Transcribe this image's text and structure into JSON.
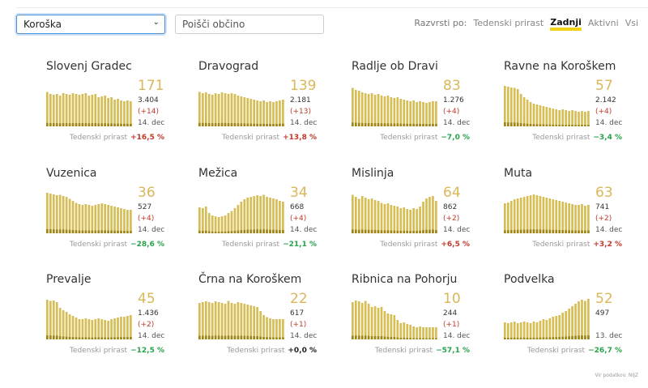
{
  "region_select": {
    "value": "Koroška"
  },
  "search": {
    "placeholder": "Poišči občino"
  },
  "sort": {
    "label": "Razvrsti po:",
    "options": [
      {
        "label": "Tedenski prirast",
        "active": false
      },
      {
        "label": "Zadnji",
        "active": true
      },
      {
        "label": "Aktivni",
        "active": false
      },
      {
        "label": "Vsi",
        "active": false
      }
    ]
  },
  "colors": {
    "bar": "#d6bd55",
    "bar_dark": "#a08616",
    "value": "#d9b75a",
    "positive": "#c0392b",
    "negative": "#27a34a"
  },
  "weekly_label": "Tedenski prirast",
  "source": "Vir podatkov: NIJZ",
  "municipalities": [
    {
      "name": "Slovenj Gradec",
      "active": "171",
      "total": "3.404",
      "delta": "(+14)",
      "date": "14. dec",
      "weekly": "+16,5 %",
      "trend": "pos",
      "series": [
        0.85,
        0.8,
        0.78,
        0.8,
        0.76,
        0.82,
        0.8,
        0.78,
        0.82,
        0.8,
        0.78,
        0.8,
        0.82,
        0.76,
        0.78,
        0.8,
        0.72,
        0.74,
        0.76,
        0.7,
        0.72,
        0.66,
        0.68,
        0.64,
        0.62,
        0.64,
        0.62
      ]
    },
    {
      "name": "Dravograd",
      "active": "139",
      "total": "2.181",
      "delta": "(+13)",
      "date": "14. dec",
      "weekly": "+13,8 %",
      "trend": "pos",
      "series": [
        0.85,
        0.82,
        0.84,
        0.8,
        0.78,
        0.82,
        0.8,
        0.84,
        0.82,
        0.8,
        0.82,
        0.8,
        0.76,
        0.74,
        0.72,
        0.7,
        0.68,
        0.66,
        0.64,
        0.62,
        0.64,
        0.6,
        0.62,
        0.6,
        0.62,
        0.64,
        0.66
      ]
    },
    {
      "name": "Radlje ob Dravi",
      "active": "83",
      "total": "1.276",
      "delta": "(+4)",
      "date": "14. dec",
      "weekly": "−7,0 %",
      "trend": "neg",
      "series": [
        0.95,
        0.9,
        0.88,
        0.84,
        0.82,
        0.8,
        0.82,
        0.78,
        0.8,
        0.76,
        0.74,
        0.76,
        0.72,
        0.7,
        0.72,
        0.68,
        0.66,
        0.64,
        0.62,
        0.64,
        0.6,
        0.62,
        0.6,
        0.58,
        0.6,
        0.62,
        0.62
      ]
    },
    {
      "name": "Ravne na Koroškem",
      "active": "57",
      "total": "2.142",
      "delta": "(+4)",
      "date": "14. dec",
      "weekly": "−3,4 %",
      "trend": "neg",
      "series": [
        1.0,
        0.98,
        0.96,
        0.95,
        0.92,
        0.8,
        0.72,
        0.66,
        0.6,
        0.56,
        0.54,
        0.52,
        0.5,
        0.48,
        0.46,
        0.44,
        0.42,
        0.4,
        0.42,
        0.4,
        0.38,
        0.4,
        0.38,
        0.36,
        0.38,
        0.36,
        0.38
      ]
    },
    {
      "name": "Vuzenica",
      "active": "36",
      "total": "527",
      "delta": "(+4)",
      "date": "14. dec",
      "weekly": "−28,6 %",
      "trend": "neg",
      "series": [
        1.0,
        0.98,
        0.96,
        0.94,
        0.95,
        0.92,
        0.9,
        0.85,
        0.8,
        0.75,
        0.72,
        0.7,
        0.72,
        0.7,
        0.68,
        0.7,
        0.72,
        0.74,
        0.72,
        0.7,
        0.68,
        0.66,
        0.64,
        0.62,
        0.6,
        0.58,
        0.58
      ]
    },
    {
      "name": "Mežica",
      "active": "34",
      "total": "668",
      "delta": "(+4)",
      "date": "14. dec",
      "weekly": "−21,1 %",
      "trend": "neg",
      "series": [
        0.64,
        0.62,
        0.66,
        0.5,
        0.44,
        0.42,
        0.4,
        0.42,
        0.44,
        0.5,
        0.55,
        0.62,
        0.7,
        0.78,
        0.84,
        0.88,
        0.9,
        0.92,
        0.94,
        0.92,
        0.95,
        0.9,
        0.88,
        0.86,
        0.84,
        0.8,
        0.78
      ]
    },
    {
      "name": "Mislinja",
      "active": "64",
      "total": "862",
      "delta": "(+2)",
      "date": "14. dec",
      "weekly": "+6,5 %",
      "trend": "pos",
      "series": [
        0.95,
        0.9,
        0.85,
        0.92,
        0.88,
        0.84,
        0.86,
        0.82,
        0.8,
        0.75,
        0.72,
        0.74,
        0.7,
        0.68,
        0.66,
        0.62,
        0.64,
        0.6,
        0.58,
        0.62,
        0.6,
        0.66,
        0.78,
        0.86,
        0.9,
        0.92,
        0.8
      ]
    },
    {
      "name": "Muta",
      "active": "63",
      "total": "741",
      "delta": "(+2)",
      "date": "14. dec",
      "weekly": "+3,2 %",
      "trend": "pos",
      "series": [
        0.74,
        0.76,
        0.8,
        0.84,
        0.86,
        0.88,
        0.9,
        0.92,
        0.94,
        0.96,
        0.94,
        0.92,
        0.9,
        0.88,
        0.86,
        0.84,
        0.82,
        0.8,
        0.78,
        0.76,
        0.74,
        0.72,
        0.7,
        0.7,
        0.72,
        0.68,
        0.7
      ]
    },
    {
      "name": "Prevalje",
      "active": "45",
      "total": "1.436",
      "delta": "(+2)",
      "date": "14. dec",
      "weekly": "−12,5 %",
      "trend": "neg",
      "series": [
        0.98,
        0.95,
        0.96,
        0.92,
        0.78,
        0.72,
        0.68,
        0.62,
        0.58,
        0.54,
        0.5,
        0.5,
        0.52,
        0.5,
        0.48,
        0.5,
        0.52,
        0.5,
        0.48,
        0.46,
        0.5,
        0.52,
        0.54,
        0.56,
        0.56,
        0.58,
        0.6
      ]
    },
    {
      "name": "Črna na Koroškem",
      "active": "22",
      "total": "617",
      "delta": "(+1)",
      "date": "14. dec",
      "weekly": "+0,0 %",
      "trend": "zero",
      "series": [
        0.9,
        0.92,
        0.94,
        0.92,
        0.9,
        0.94,
        0.92,
        0.9,
        0.88,
        0.95,
        0.9,
        0.88,
        0.92,
        0.9,
        0.88,
        0.86,
        0.84,
        0.82,
        0.8,
        0.7,
        0.6,
        0.55,
        0.52,
        0.5,
        0.5,
        0.5,
        0.5
      ]
    },
    {
      "name": "Ribnica na Pohorju",
      "active": "10",
      "total": "244",
      "delta": "(+1)",
      "date": "14. dec",
      "weekly": "−57,1 %",
      "trend": "neg",
      "series": [
        0.92,
        0.96,
        0.94,
        0.9,
        0.95,
        0.88,
        0.8,
        0.82,
        0.78,
        0.8,
        0.7,
        0.64,
        0.62,
        0.6,
        0.48,
        0.4,
        0.42,
        0.38,
        0.36,
        0.32,
        0.3,
        0.32,
        0.3,
        0.3,
        0.3,
        0.3,
        0.3
      ]
    },
    {
      "name": "Podvelka",
      "active": "52",
      "total": "497",
      "delta": "",
      "date": "13. dec",
      "weekly": "−26,7 %",
      "trend": "neg",
      "series": [
        0.42,
        0.4,
        0.42,
        0.44,
        0.4,
        0.42,
        0.44,
        0.42,
        0.4,
        0.44,
        0.42,
        0.46,
        0.5,
        0.48,
        0.52,
        0.56,
        0.58,
        0.6,
        0.66,
        0.7,
        0.76,
        0.82,
        0.88,
        0.94,
        0.98,
        0.95,
        1.0
      ]
    }
  ]
}
